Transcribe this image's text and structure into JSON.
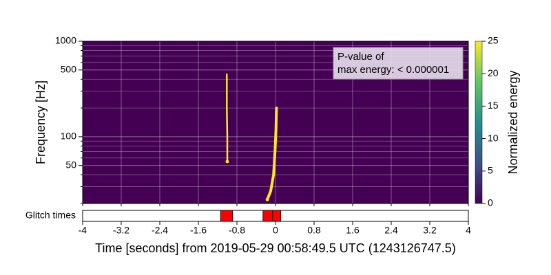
{
  "chart_data": {
    "type": "spectrogram",
    "xlabel": "Time [seconds] from 2019-05-29 00:58:49.5 UTC (1243126747.5)",
    "ylabel": "Frequency [Hz]",
    "xlim": [
      -4,
      4
    ],
    "xticks": [
      -4,
      -3.2,
      -2.4,
      -1.6,
      -0.8,
      0,
      0.8,
      1.6,
      2.4,
      3.2,
      4
    ],
    "ylim": [
      20,
      1000
    ],
    "yscale": "log",
    "yticks": [
      50,
      100,
      500,
      1000
    ],
    "yminorticks": [
      20,
      30,
      40,
      60,
      70,
      80,
      90,
      200,
      300,
      400,
      600,
      700,
      800,
      900
    ],
    "grid": true,
    "background_color": "#440154",
    "colorbar": {
      "label": "Normalized energy",
      "lim": [
        0,
        25
      ],
      "ticks": [
        0,
        5,
        10,
        15,
        20,
        25
      ],
      "colormap": [
        "#440154",
        "#3b528b",
        "#21918c",
        "#5ec962",
        "#fde725"
      ]
    },
    "tracks": [
      {
        "times": [
          -1.0,
          -1.0,
          -1.01,
          -1.01
        ],
        "frequencies": [
          55,
          100,
          200,
          450
        ],
        "energy": 25
      },
      {
        "times": [
          -0.17,
          -0.1,
          -0.04,
          -0.01,
          0.01,
          0.02
        ],
        "frequencies": [
          22,
          27,
          40,
          70,
          120,
          200
        ],
        "energy": 25
      }
    ],
    "annotation": [
      "P-value of",
      "max energy: < 0.000001"
    ],
    "glitch_label": "Glitch times",
    "glitches": [
      {
        "start": -1.14,
        "end": -0.89
      },
      {
        "start": -0.26,
        "end": -0.06
      },
      {
        "start": -0.06,
        "end": 0.11
      }
    ],
    "glitch_color": "#ff0000"
  }
}
